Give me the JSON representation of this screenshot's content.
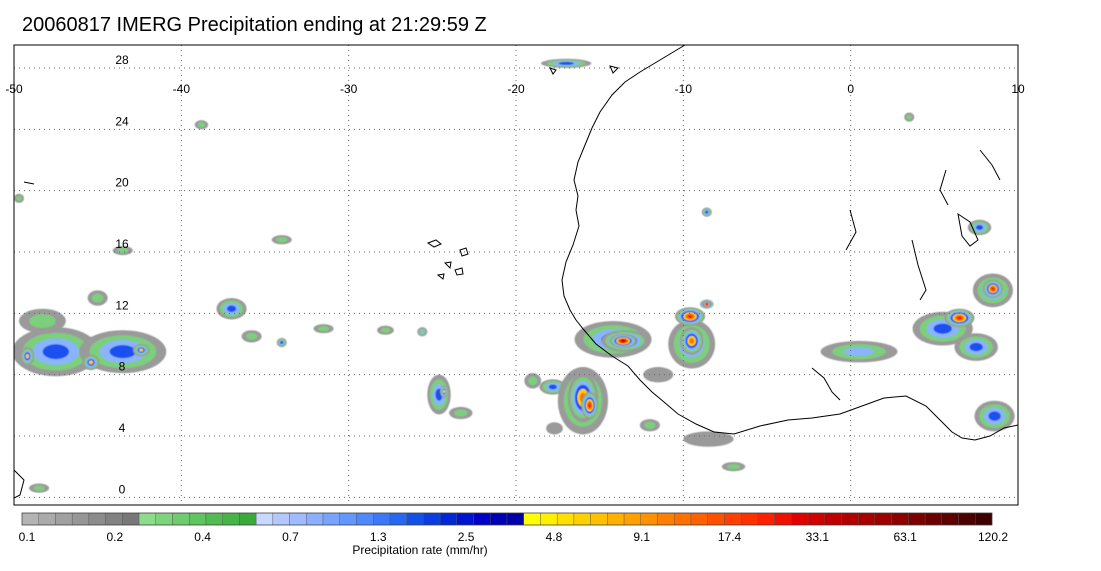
{
  "title": "20060817 IMERG Precipitation ending at 21:29:59 Z",
  "map": {
    "lon_range": [
      -50,
      10
    ],
    "lat_range": [
      -0.5,
      29.5
    ],
    "lon_ticks": [
      "-50",
      "-40",
      "-30",
      "-20",
      "-10",
      "0",
      "10"
    ],
    "lat_ticks": [
      "0",
      "4",
      "8",
      "12",
      "16",
      "20",
      "24",
      "28"
    ],
    "grid": "dotted"
  },
  "colorbar": {
    "title": "Precipitation rate (mm/hr)",
    "labels": [
      "0.1",
      "0.2",
      "0.4",
      "0.7",
      "1.3",
      "2.5",
      "4.8",
      "9.1",
      "17.4",
      "33.1",
      "63.1",
      "120.2"
    ],
    "colors": [
      "#b4b4b4",
      "#aaaaaa",
      "#a0a0a0",
      "#969696",
      "#8c8c8c",
      "#828282",
      "#787878",
      "#8cdc8c",
      "#7dd47d",
      "#6ecc6e",
      "#60c460",
      "#52bc52",
      "#46b446",
      "#3aa83a",
      "#c8d8ff",
      "#b4c8ff",
      "#a0bbff",
      "#8cb0ff",
      "#78a4ff",
      "#6496ff",
      "#5088ff",
      "#3c78f8",
      "#2868f0",
      "#1450e8",
      "#0a3ce0",
      "#0028d8",
      "#0014d0",
      "#0000c8",
      "#0000b8",
      "#0000a8",
      "#ffff00",
      "#fff000",
      "#ffe000",
      "#ffd000",
      "#ffc000",
      "#ffb000",
      "#ffa000",
      "#ff9000",
      "#ff8000",
      "#ff7000",
      "#ff6000",
      "#ff5000",
      "#ff4000",
      "#ff3000",
      "#ff2000",
      "#f01000",
      "#e00000",
      "#d00000",
      "#c00000",
      "#b40000",
      "#a80000",
      "#9c0000",
      "#8c0000",
      "#7c0000",
      "#6c0000",
      "#5c0000",
      "#4c0000",
      "#3c0000"
    ]
  },
  "precip_cells": [
    {
      "lon": -47.5,
      "lat": 9.5,
      "rx": 2.6,
      "ry": 1.6,
      "level": 3
    },
    {
      "lon": -43.5,
      "lat": 9.5,
      "rx": 2.6,
      "ry": 1.4,
      "level": 3
    },
    {
      "lon": -49.2,
      "lat": 9.2,
      "rx": 0.4,
      "ry": 0.6,
      "level": 4
    },
    {
      "lon": -45.4,
      "lat": 8.8,
      "rx": 0.5,
      "ry": 0.5,
      "level": 4
    },
    {
      "lon": -42.4,
      "lat": 9.6,
      "rx": 0.5,
      "ry": 0.4,
      "level": 4
    },
    {
      "lon": -48.3,
      "lat": 11.5,
      "rx": 1.4,
      "ry": 0.8,
      "level": 1
    },
    {
      "lon": -45.0,
      "lat": 13.0,
      "rx": 0.6,
      "ry": 0.5,
      "level": 1
    },
    {
      "lon": -37.0,
      "lat": 12.3,
      "rx": 0.9,
      "ry": 0.7,
      "level": 3
    },
    {
      "lon": -35.8,
      "lat": 10.5,
      "rx": 0.6,
      "ry": 0.4,
      "level": 1
    },
    {
      "lon": -34.0,
      "lat": 10.1,
      "rx": 0.3,
      "ry": 0.3,
      "level": 3
    },
    {
      "lon": -31.5,
      "lat": 11.0,
      "rx": 0.6,
      "ry": 0.3,
      "level": 1
    },
    {
      "lon": -27.8,
      "lat": 10.9,
      "rx": 0.5,
      "ry": 0.3,
      "level": 1
    },
    {
      "lon": -25.6,
      "lat": 10.8,
      "rx": 0.3,
      "ry": 0.3,
      "level": 2
    },
    {
      "lon": -24.6,
      "lat": 6.7,
      "rx": 0.7,
      "ry": 1.3,
      "level": 3
    },
    {
      "lon": -24.3,
      "lat": 6.9,
      "rx": 0.25,
      "ry": 0.4,
      "level": 4
    },
    {
      "lon": -23.3,
      "lat": 5.5,
      "rx": 0.7,
      "ry": 0.4,
      "level": 1
    },
    {
      "lon": -19.0,
      "lat": 7.6,
      "rx": 0.5,
      "ry": 0.5,
      "level": 1
    },
    {
      "lon": -17.8,
      "lat": 7.2,
      "rx": 0.8,
      "ry": 0.5,
      "level": 3
    },
    {
      "lon": -16.0,
      "lat": 6.3,
      "rx": 1.5,
      "ry": 2.2,
      "level": 3
    },
    {
      "lon": -16.0,
      "lat": 6.5,
      "rx": 0.9,
      "ry": 1.6,
      "level": 5
    },
    {
      "lon": -15.6,
      "lat": 6.0,
      "rx": 0.5,
      "ry": 0.9,
      "level": 6
    },
    {
      "lon": -14.2,
      "lat": 10.3,
      "rx": 2.3,
      "ry": 1.2,
      "level": 3
    },
    {
      "lon": -13.5,
      "lat": 10.2,
      "rx": 1.4,
      "ry": 0.7,
      "level": 5
    },
    {
      "lon": -13.6,
      "lat": 10.2,
      "rx": 0.8,
      "ry": 0.45,
      "level": 7
    },
    {
      "lon": -9.5,
      "lat": 10.0,
      "rx": 1.4,
      "ry": 1.6,
      "level": 3
    },
    {
      "lon": -9.5,
      "lat": 10.2,
      "rx": 0.7,
      "ry": 0.9,
      "level": 5
    },
    {
      "lon": -9.6,
      "lat": 11.8,
      "rx": 0.9,
      "ry": 0.6,
      "level": 6
    },
    {
      "lon": -8.6,
      "lat": 12.6,
      "rx": 0.4,
      "ry": 0.3,
      "level": 6
    },
    {
      "lon": -8.6,
      "lat": 18.6,
      "rx": 0.3,
      "ry": 0.3,
      "level": 3
    },
    {
      "lon": 0.5,
      "lat": 9.5,
      "rx": 2.3,
      "ry": 0.7,
      "level": 2
    },
    {
      "lon": 5.5,
      "lat": 11.0,
      "rx": 1.8,
      "ry": 1.1,
      "level": 3
    },
    {
      "lon": 6.5,
      "lat": 11.7,
      "rx": 0.9,
      "ry": 0.6,
      "level": 6
    },
    {
      "lon": 7.5,
      "lat": 9.8,
      "rx": 1.3,
      "ry": 0.9,
      "level": 3
    },
    {
      "lon": 8.5,
      "lat": 13.5,
      "rx": 1.2,
      "ry": 1.1,
      "level": 3
    },
    {
      "lon": 8.5,
      "lat": 13.6,
      "rx": 0.6,
      "ry": 0.6,
      "level": 6
    },
    {
      "lon": 7.7,
      "lat": 17.6,
      "rx": 0.7,
      "ry": 0.5,
      "level": 3
    },
    {
      "lon": 8.6,
      "lat": 5.3,
      "rx": 1.2,
      "ry": 1.0,
      "level": 3
    },
    {
      "lon": -17.0,
      "lat": 28.3,
      "rx": 1.5,
      "ry": 0.3,
      "level": 3
    },
    {
      "lon": -38.8,
      "lat": 24.3,
      "rx": 0.4,
      "ry": 0.3,
      "level": 1
    },
    {
      "lon": -34.0,
      "lat": 16.8,
      "rx": 0.6,
      "ry": 0.3,
      "level": 1
    },
    {
      "lon": -43.5,
      "lat": 16.1,
      "rx": 0.6,
      "ry": 0.3,
      "level": 1
    },
    {
      "lon": -8.5,
      "lat": 3.8,
      "rx": 1.5,
      "ry": 0.5,
      "level": 0
    },
    {
      "lon": -12.0,
      "lat": 4.7,
      "rx": 0.6,
      "ry": 0.4,
      "level": 1
    },
    {
      "lon": -17.7,
      "lat": 4.5,
      "rx": 0.5,
      "ry": 0.4,
      "level": 0
    },
    {
      "lon": -11.5,
      "lat": 8.0,
      "rx": 0.9,
      "ry": 0.5,
      "level": 0
    },
    {
      "lon": -7.0,
      "lat": 2.0,
      "rx": 0.7,
      "ry": 0.3,
      "level": 1
    },
    {
      "lon": 3.5,
      "lat": 24.8,
      "rx": 0.3,
      "ry": 0.3,
      "level": 1
    },
    {
      "lon": -49.7,
      "lat": 19.5,
      "rx": 0.3,
      "ry": 0.3,
      "level": 1
    },
    {
      "lon": -48.5,
      "lat": 0.6,
      "rx": 0.6,
      "ry": 0.3,
      "level": 1
    }
  ]
}
